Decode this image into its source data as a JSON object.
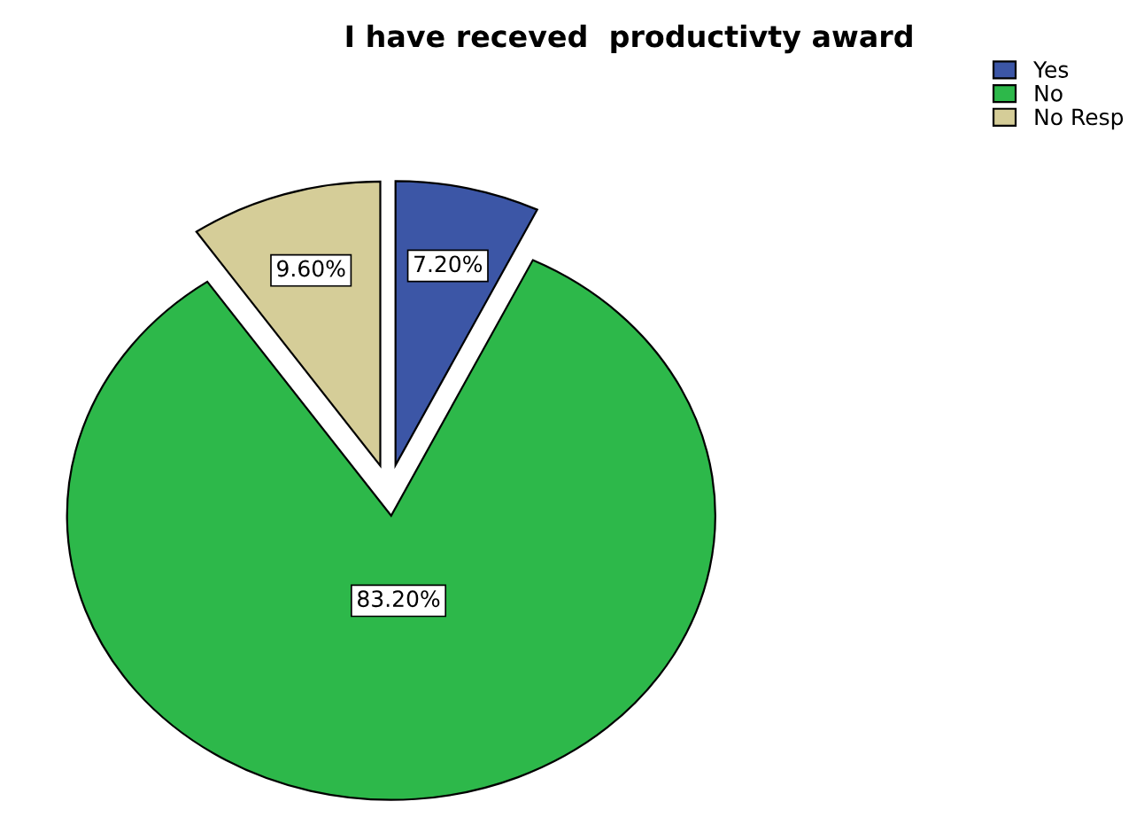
{
  "chart_data": {
    "type": "pie",
    "title": "I have receved  productivty award",
    "categories": [
      "Yes",
      "No",
      "No Resp"
    ],
    "values": [
      7.2,
      83.2,
      9.6
    ],
    "value_labels": [
      "7.20%",
      "83.20%",
      "9.60%"
    ],
    "colors": [
      "#3c56a6",
      "#2db84a",
      "#d5cd98"
    ],
    "legend": "top right"
  }
}
